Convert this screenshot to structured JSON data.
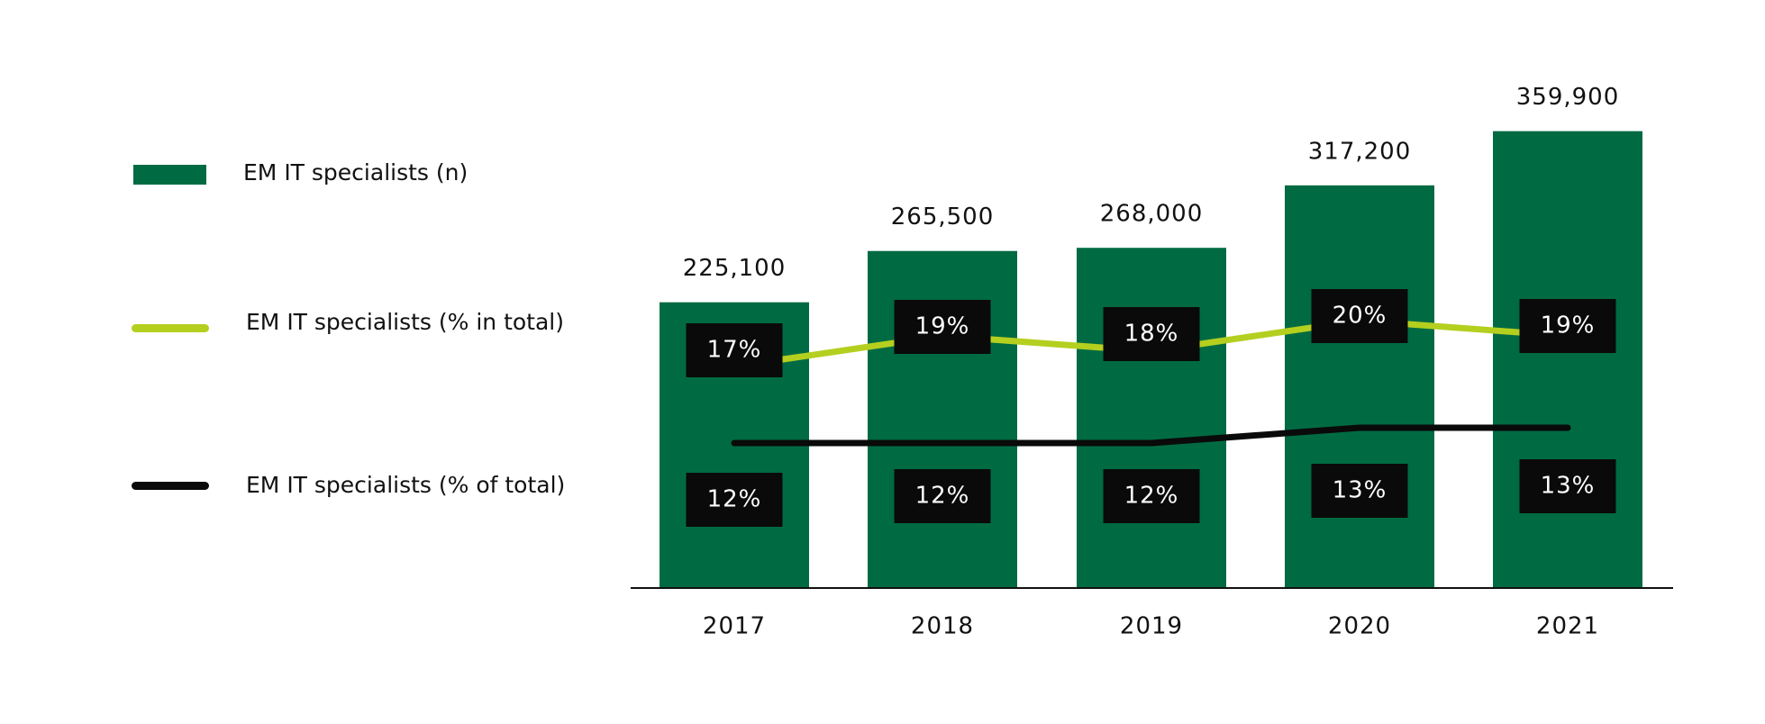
{
  "colors": {
    "bar": "#006b42",
    "pct_in_total_line": "#b5cf1f",
    "pct_of_total_line": "#0a0a0a",
    "label_box": "#0a0a0a",
    "label_text": "#ffffff",
    "axis": "#111111"
  },
  "legend": {
    "bars_label": "EM IT specialists (n)",
    "line_in_total_label": "EM IT specialists (% in total)",
    "line_of_total_label": "EM IT specialists (% of total)"
  },
  "chart_data": {
    "type": "bar",
    "title": "",
    "xlabel": "",
    "ylabel": "",
    "categories": [
      "2017",
      "2018",
      "2019",
      "2020",
      "2021"
    ],
    "series": [
      {
        "name": "EM IT specialists (n)",
        "type": "bar",
        "values": [
          225100,
          265500,
          268000,
          317200,
          359900
        ],
        "labels": [
          "225,100",
          "265,500",
          "268,000",
          "317,200",
          "359,900"
        ]
      },
      {
        "name": "EM IT specialists (% in total)",
        "type": "line",
        "values": [
          17,
          19,
          18,
          20,
          19
        ],
        "labels": [
          "17%",
          "19%",
          "18%",
          "20%",
          "19%"
        ]
      },
      {
        "name": "EM IT specialists (% of total)",
        "type": "line",
        "values": [
          12,
          12,
          12,
          13,
          13
        ],
        "labels": [
          "12%",
          "12%",
          "12%",
          "13%",
          "13%"
        ]
      }
    ],
    "legend_position": "left",
    "grid": false
  }
}
